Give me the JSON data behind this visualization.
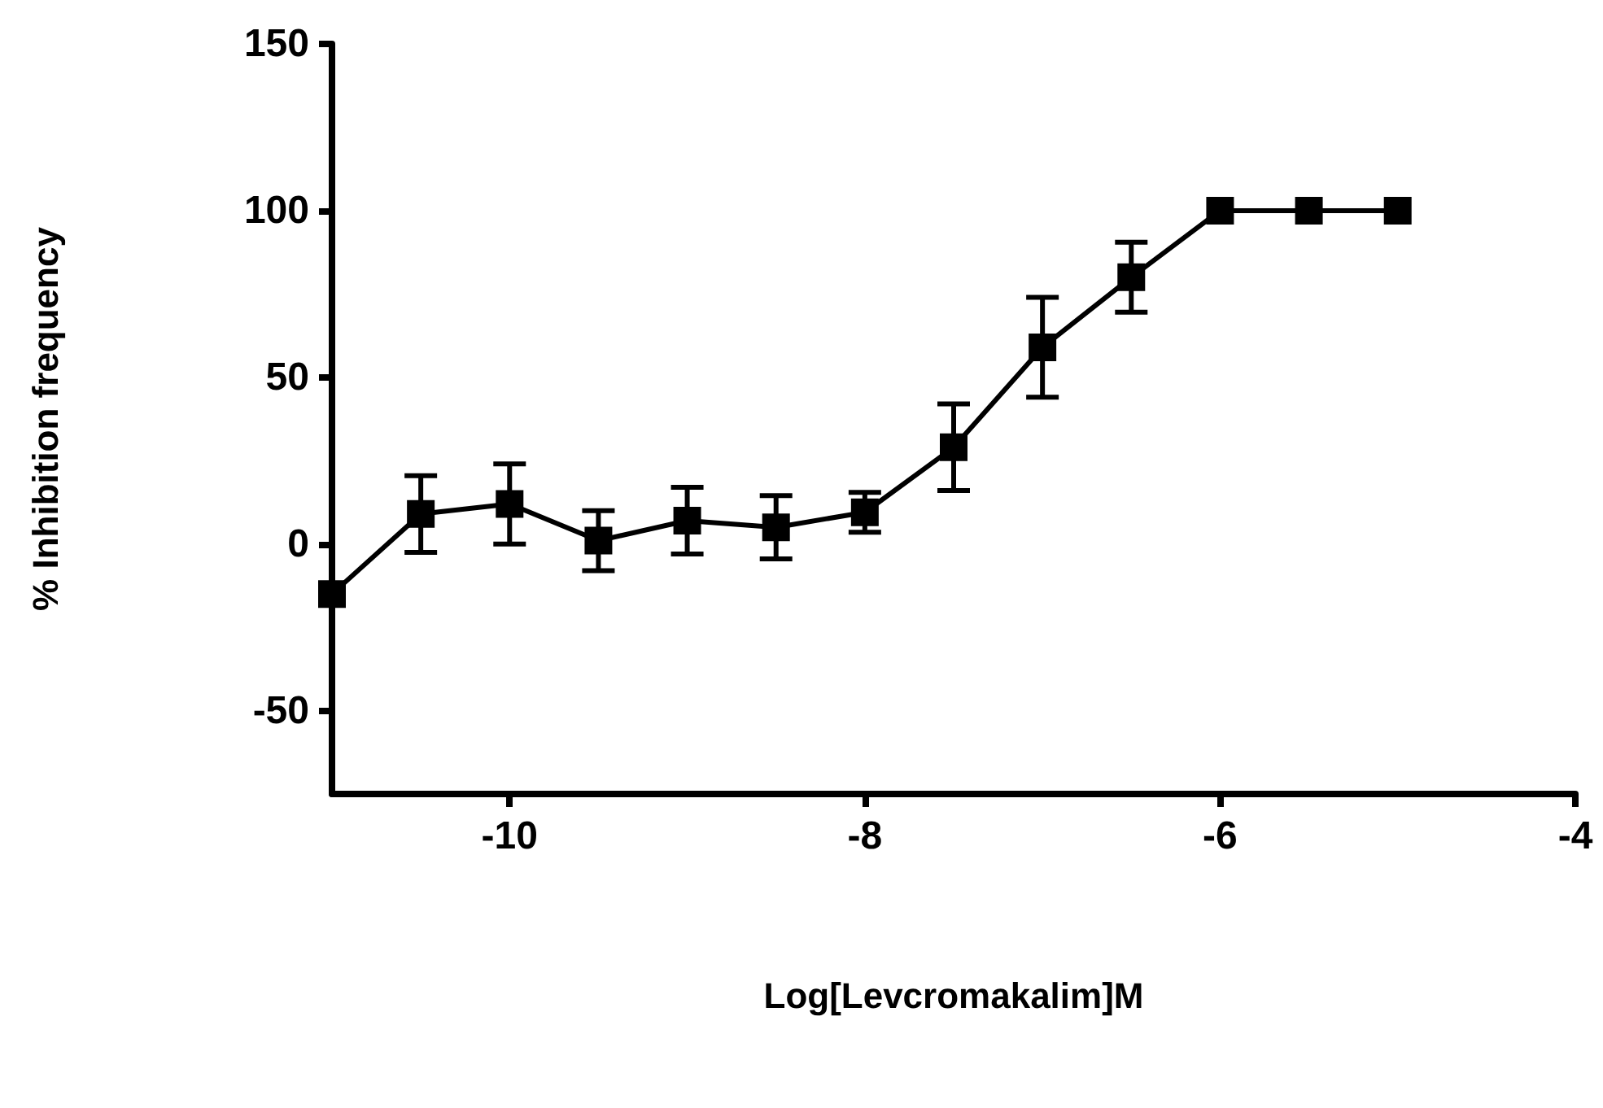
{
  "chart_data": {
    "type": "line",
    "xlabel": "Log[Levcromakalim]M",
    "ylabel": "% Inhibition frequency",
    "x": [
      -11,
      -10.5,
      -10,
      -9.5,
      -9,
      -8.5,
      -8,
      -7.5,
      -7,
      -6.5,
      -6,
      -5.5,
      -5
    ],
    "series": [
      {
        "color": "#000000",
        "values": [
          -15,
          9,
          12,
          1,
          7,
          5,
          9.5,
          29,
          59,
          80,
          100,
          100,
          100
        ],
        "errors": [
          null,
          11.5,
          12,
          9,
          10,
          9.5,
          6,
          13,
          15,
          10.5,
          null,
          null,
          null
        ]
      }
    ],
    "xlim": [
      -11,
      -4
    ],
    "xticks": [
      -10,
      -8,
      -6,
      -4
    ],
    "ylim": [
      -75,
      150
    ],
    "yticks": [
      -50,
      0,
      50,
      100,
      150
    ],
    "grid": false,
    "marker": "square",
    "line_style": "solid"
  }
}
